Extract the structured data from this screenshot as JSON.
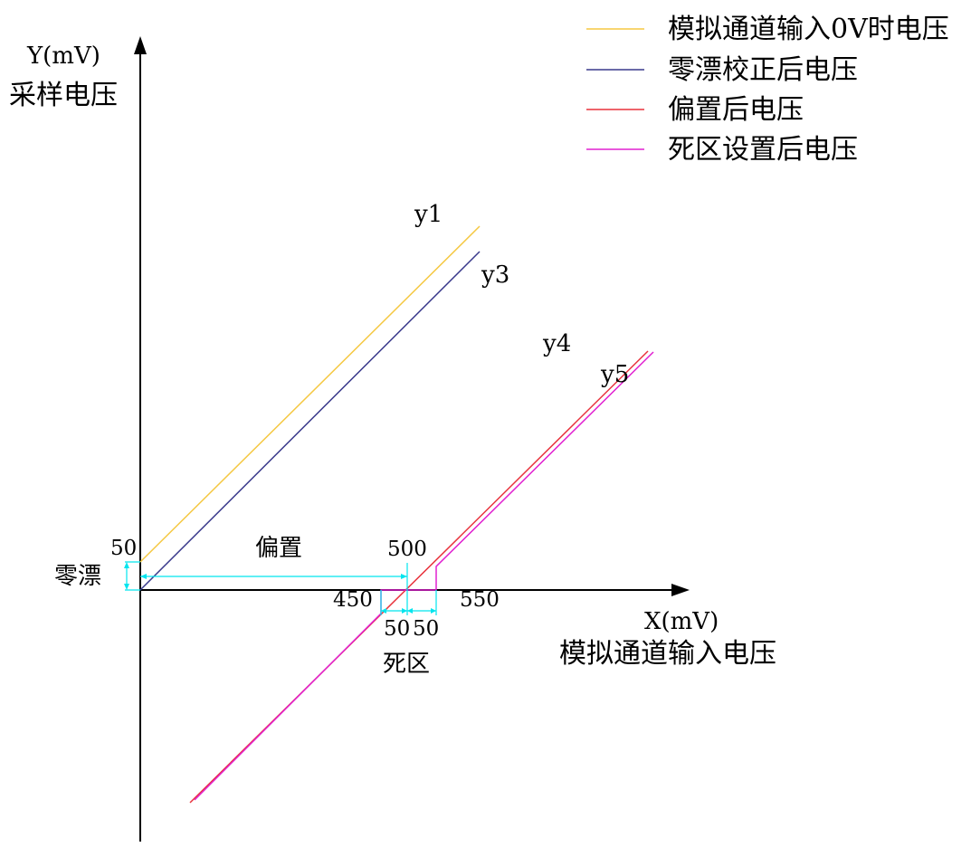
{
  "axes": {
    "y_label": "Y(mV)",
    "y_title": "采样电压",
    "x_label": "X(mV)",
    "x_title": "模拟通道输入电压"
  },
  "legend": [
    {
      "label": "模拟通道输入0V时电压",
      "color": "#f5c842"
    },
    {
      "label": "零漂校正后电压",
      "color": "#3a3a8c"
    },
    {
      "label": "偏置后电压",
      "color": "#e8323c"
    },
    {
      "label": "死区设置后电压",
      "color": "#e020d0"
    }
  ],
  "line_labels": {
    "y1": "y1",
    "y3": "y3",
    "y4": "y4",
    "y5": "y5"
  },
  "annotations": {
    "zero_drift_value": "50",
    "zero_drift_label": "零漂",
    "offset_label": "偏置",
    "offset_value": "500",
    "dead_low": "450",
    "dead_high": "550",
    "dead_left_width": "50",
    "dead_right_width": "50",
    "dead_zone_label": "死区"
  },
  "colors": {
    "axis": "#000000",
    "dimension": "#00e5ee",
    "y1": "#f5c842",
    "y3": "#3a3a8c",
    "y4": "#e8323c",
    "y5": "#e020d0"
  }
}
